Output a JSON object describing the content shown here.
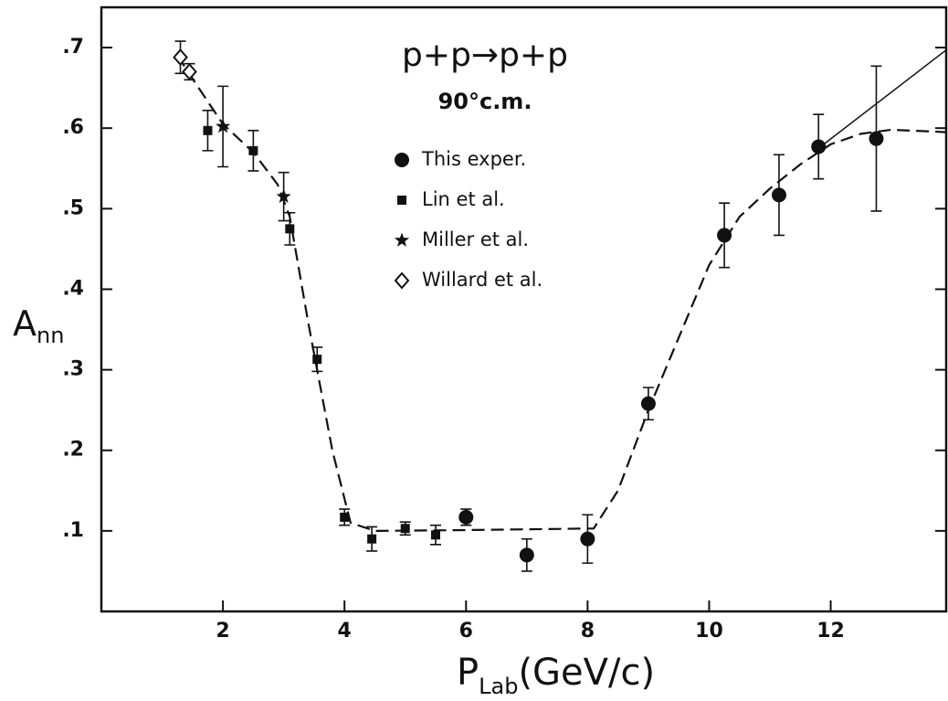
{
  "chart_data": {
    "type": "scatter",
    "title": "p+p→p+p",
    "subtitle": "90°c.m.",
    "x_label": [
      "P",
      "Lab",
      "(GeV/c)"
    ],
    "y_label": [
      "A",
      "nn"
    ],
    "xlim": [
      0,
      13.9
    ],
    "ylim": [
      0,
      0.75
    ],
    "xticks": [
      2,
      4,
      6,
      8,
      10,
      12
    ],
    "yticks": [
      {
        "value": 0.1,
        "label": ".1"
      },
      {
        "value": 0.2,
        "label": ".2"
      },
      {
        "value": 0.3,
        "label": ".3"
      },
      {
        "value": 0.4,
        "label": ".4"
      },
      {
        "value": 0.5,
        "label": ".5"
      },
      {
        "value": 0.6,
        "label": ".6"
      },
      {
        "value": 0.7,
        "label": ".7"
      }
    ],
    "series": [
      {
        "name": "This exper.",
        "marker": "circle",
        "color": "#111",
        "x": [
          6.0,
          7.0,
          8.0,
          9.0,
          10.25,
          11.15,
          11.8,
          12.75
        ],
        "values": [
          0.117,
          0.07,
          0.09,
          0.258,
          0.467,
          0.517,
          0.577,
          0.587
        ],
        "errors": [
          0.01,
          0.02,
          0.03,
          0.02,
          0.04,
          0.05,
          0.04,
          0.09
        ]
      },
      {
        "name": "Lin et al.",
        "marker": "square",
        "color": "#111",
        "x": [
          1.75,
          2.5,
          3.1,
          3.55,
          4.0,
          4.45,
          5.0,
          5.5
        ],
        "values": [
          0.597,
          0.572,
          0.475,
          0.313,
          0.117,
          0.09,
          0.103,
          0.095
        ],
        "errors": [
          0.025,
          0.025,
          0.02,
          0.015,
          0.01,
          0.015,
          0.008,
          0.012
        ]
      },
      {
        "name": "Miller et al.",
        "marker": "star",
        "color": "#111",
        "x": [
          2.0,
          3.0
        ],
        "values": [
          0.602,
          0.515
        ],
        "errors": [
          0.05,
          0.03
        ]
      },
      {
        "name": "Willard  et al.",
        "marker": "diamond",
        "color": "#111",
        "x": [
          1.3,
          1.45
        ],
        "values": [
          0.688,
          0.67
        ],
        "errors": [
          0.02,
          0.01
        ]
      }
    ],
    "curves": [
      {
        "style": "dashed",
        "x": [
          1.25,
          1.6,
          2.0,
          2.5,
          2.9,
          3.1,
          3.4,
          3.8,
          4.1,
          4.5,
          6.0,
          8.1,
          8.5,
          9.0,
          9.5,
          10.0,
          10.5,
          11.0,
          11.5,
          12.0,
          12.5,
          13.0,
          13.9
        ],
        "values": [
          0.69,
          0.65,
          0.605,
          0.57,
          0.53,
          0.49,
          0.36,
          0.2,
          0.11,
          0.1,
          0.101,
          0.103,
          0.15,
          0.25,
          0.34,
          0.43,
          0.49,
          0.525,
          0.555,
          0.58,
          0.593,
          0.598,
          0.595
        ]
      },
      {
        "style": "solid",
        "x": [
          11.8,
          13.9
        ],
        "values": [
          0.575,
          0.697
        ]
      }
    ]
  }
}
